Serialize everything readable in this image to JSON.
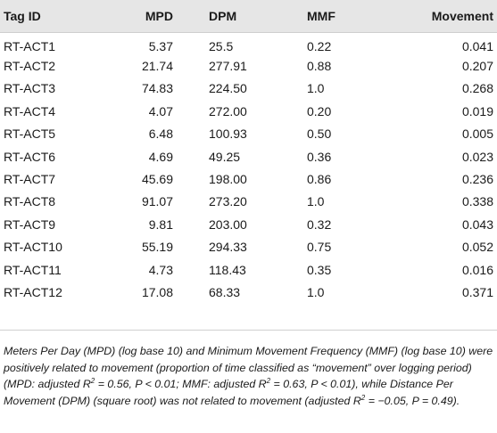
{
  "table": {
    "headers": [
      "Tag ID",
      "MPD",
      "DPM",
      "MMF",
      "Movement"
    ],
    "rows": [
      [
        "RT-ACT1",
        "5.37",
        "25.5",
        "0.22",
        "0.041"
      ],
      [
        "RT-ACT2",
        "21.74",
        "277.91",
        "0.88",
        "0.207"
      ],
      [
        "RT-ACT3",
        "74.83",
        "224.50",
        "1.0",
        "0.268"
      ],
      [
        "RT-ACT4",
        "4.07",
        "272.00",
        "0.20",
        "0.019"
      ],
      [
        "RT-ACT5",
        "6.48",
        "100.93",
        "0.50",
        "0.005"
      ],
      [
        "RT-ACT6",
        "4.69",
        "49.25",
        "0.36",
        "0.023"
      ],
      [
        "RT-ACT7",
        "45.69",
        "198.00",
        "0.86",
        "0.236"
      ],
      [
        "RT-ACT8",
        "91.07",
        "273.20",
        "1.0",
        "0.338"
      ],
      [
        "RT-ACT9",
        "9.81",
        "203.00",
        "0.32",
        "0.043"
      ],
      [
        "RT-ACT10",
        "55.19",
        "294.33",
        "0.75",
        "0.052"
      ],
      [
        "RT-ACT11",
        "4.73",
        "118.43",
        "0.35",
        "0.016"
      ],
      [
        "RT-ACT12",
        "17.08",
        "68.33",
        "1.0",
        "0.371"
      ]
    ]
  },
  "footnote": {
    "part1": "Meters Per Day (MPD) (log base 10) and Minimum Movement Frequency (MMF) (log base 10) were positively related to movement (proportion of time classified as “movement” over logging period) (MPD: adjusted R",
    "sup1": "2",
    "part2": " = 0.56, P < 0.01; MMF: adjusted R",
    "sup2": "2",
    "part3": " = 0.63, P < 0.01), while Distance Per Movement (DPM) (square root) was not related to movement (adjusted R",
    "sup3": "2",
    "part4": " = −0.05, P = 0.49)."
  }
}
